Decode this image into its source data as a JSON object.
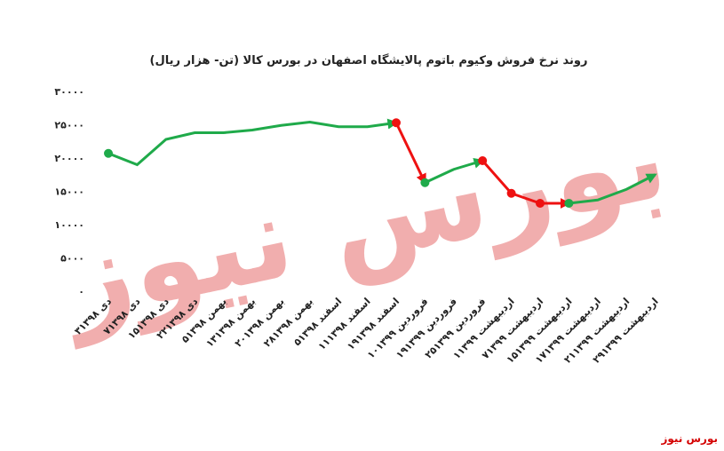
{
  "chart_data": {
    "type": "line",
    "title": "روند نرخ فروش وکیوم باتوم پالایشگاه اصفهان در بورس کالا (تن- هزار ریال)",
    "watermark": "بورس نیوز",
    "footer": "بورس نیوز",
    "categories": [
      "۳دی ۱۳۹۸",
      "۷دی ۱۳۹۸",
      "۱۵دی ۱۳۹۸",
      "۲۲دی ۱۳۹۸",
      "۵بهمن ۱۳۹۸",
      "۱۳بهمن ۱۳۹۸",
      "۲۰بهمن ۱۳۹۸",
      "۲۸بهمن ۱۳۹۸",
      "۵اسفند ۱۳۹۸",
      "۱۱اسفند ۱۳۹۸",
      "۱۹اسفند ۱۳۹۸",
      "۱۰فروردین ۱۳۹۹",
      "۱۹فروردین ۱۳۹۹",
      "۲۵فروردین ۱۳۹۹",
      "۱اردیبهشت ۱۳۹۹",
      "۷اردیبهشت ۱۳۹۹",
      "۱۵اردیبهشت ۱۳۹۹",
      "۱۷اردیبهشت ۱۳۹۹",
      "۲۱اردیبهشت ۱۳۹۹",
      "۲۹اردیبهشت ۱۳۹۹"
    ],
    "series": [
      {
        "color": "#1faa4a",
        "marker_indices": [
          0
        ],
        "values": [
          20700,
          19000,
          22800,
          23800,
          23800,
          24200,
          24900,
          25400,
          24700,
          24700,
          25300,
          null,
          null,
          null,
          null,
          null,
          null,
          null,
          null,
          null
        ]
      },
      {
        "color": "#ee1111",
        "marker_indices": [
          10
        ],
        "values": [
          null,
          null,
          null,
          null,
          null,
          null,
          null,
          null,
          null,
          null,
          25300,
          16300,
          null,
          null,
          null,
          null,
          null,
          null,
          null,
          null
        ]
      },
      {
        "color": "#1faa4a",
        "marker_indices": [
          11
        ],
        "values": [
          null,
          null,
          null,
          null,
          null,
          null,
          null,
          null,
          null,
          null,
          null,
          16300,
          18300,
          19600,
          null,
          null,
          null,
          null,
          null,
          null
        ]
      },
      {
        "color": "#ee1111",
        "marker_indices": [
          13,
          14,
          15
        ],
        "values": [
          null,
          null,
          null,
          null,
          null,
          null,
          null,
          null,
          null,
          null,
          null,
          null,
          null,
          19600,
          14700,
          13200,
          13200,
          null,
          null,
          null
        ]
      },
      {
        "color": "#1faa4a",
        "marker_indices": [
          16
        ],
        "values": [
          null,
          null,
          null,
          null,
          null,
          null,
          null,
          null,
          null,
          null,
          null,
          null,
          null,
          null,
          null,
          null,
          13200,
          13700,
          15300,
          17500
        ]
      }
    ],
    "ylim": [
      0,
      30000
    ],
    "yticks": [
      {
        "value": 0,
        "label": "۰"
      },
      {
        "value": 5000,
        "label": "۵۰۰۰"
      },
      {
        "value": 10000,
        "label": "۱۰۰۰۰"
      },
      {
        "value": 15000,
        "label": "۱۵۰۰۰"
      },
      {
        "value": 20000,
        "label": "۲۰۰۰۰"
      },
      {
        "value": 25000,
        "label": "۲۵۰۰۰"
      },
      {
        "value": 30000,
        "label": "۳۰۰۰۰"
      }
    ],
    "grid": false
  }
}
